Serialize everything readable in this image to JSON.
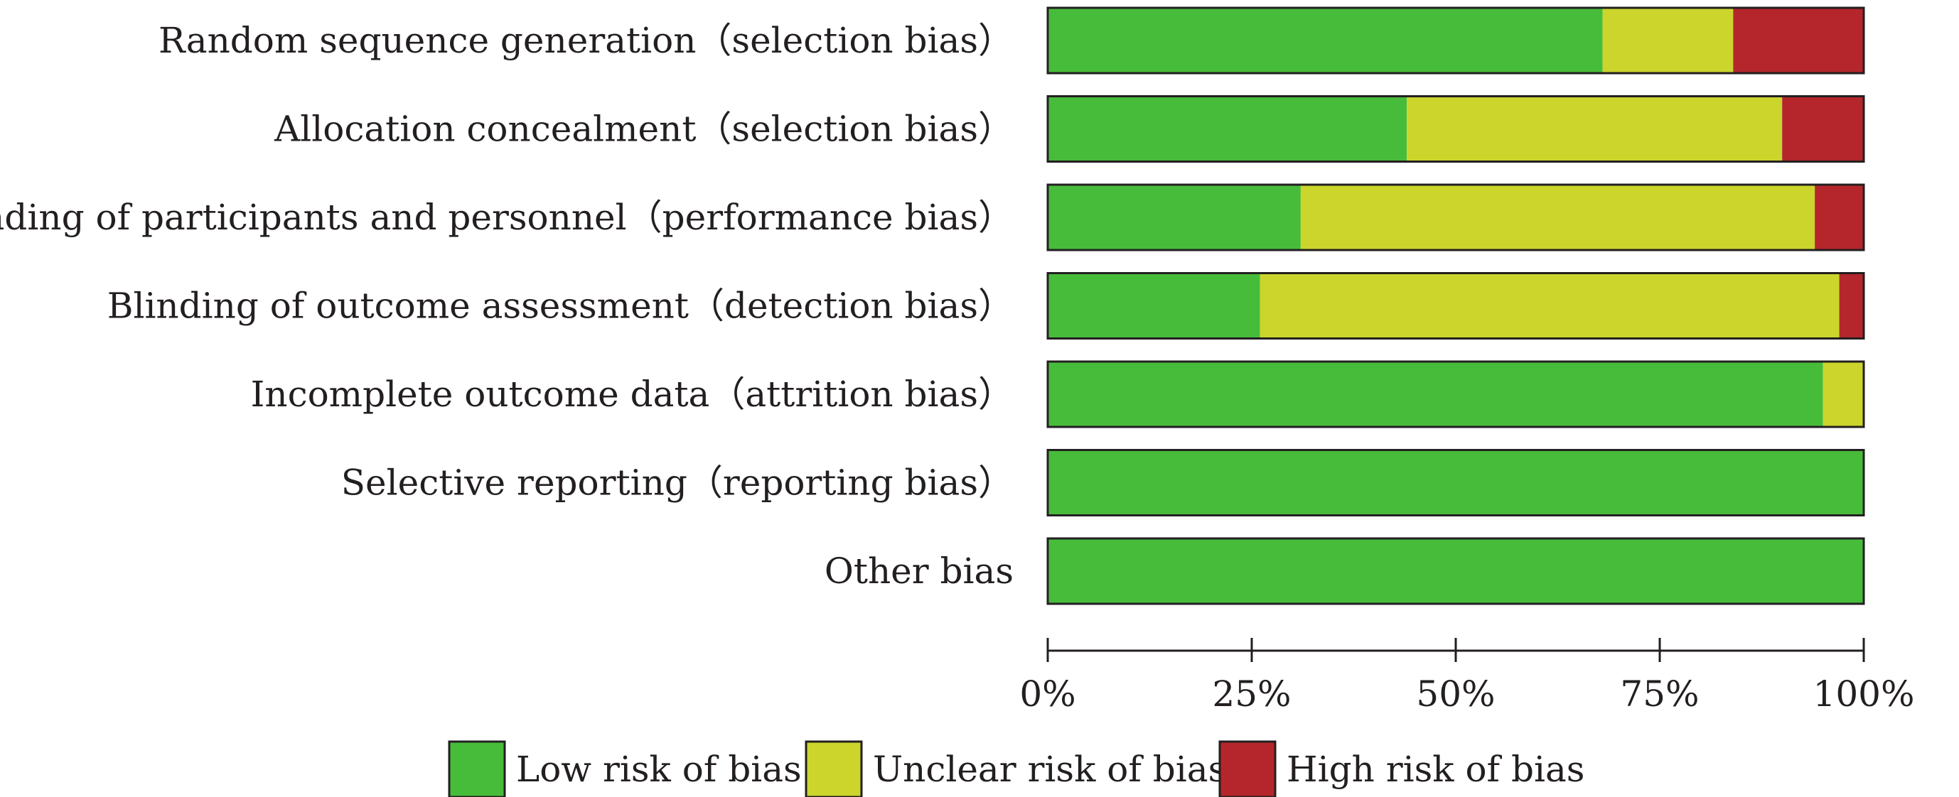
{
  "chart_data": {
    "type": "bar",
    "orientation": "horizontal",
    "stacked": true,
    "categories": [
      "Random sequence generation（selection bias）",
      "Allocation concealment（selection bias）",
      "Blinding of participants and personnel（performance bias）",
      "Blinding of outcome assessment（detection bias）",
      "Incomplete outcome data（attrition bias）",
      "Selective reporting（reporting bias）",
      "Other bias"
    ],
    "series": [
      {
        "name": "Low risk of bias",
        "color": "#47bc3b",
        "values": [
          68,
          44,
          31,
          26,
          95,
          100,
          100
        ]
      },
      {
        "name": "Unclear risk of bias",
        "color": "#cbd52c",
        "values": [
          16,
          46,
          63,
          71,
          5,
          0,
          0
        ]
      },
      {
        "name": "High risk of bias",
        "color": "#b4262b",
        "values": [
          16,
          10,
          6,
          3,
          0,
          0,
          0
        ]
      }
    ],
    "x_ticks": [
      "0%",
      "25%",
      "50%",
      "75%",
      "100%"
    ],
    "xlim": [
      0,
      100
    ],
    "unit": "%",
    "legend_position": "bottom",
    "grid": false
  }
}
